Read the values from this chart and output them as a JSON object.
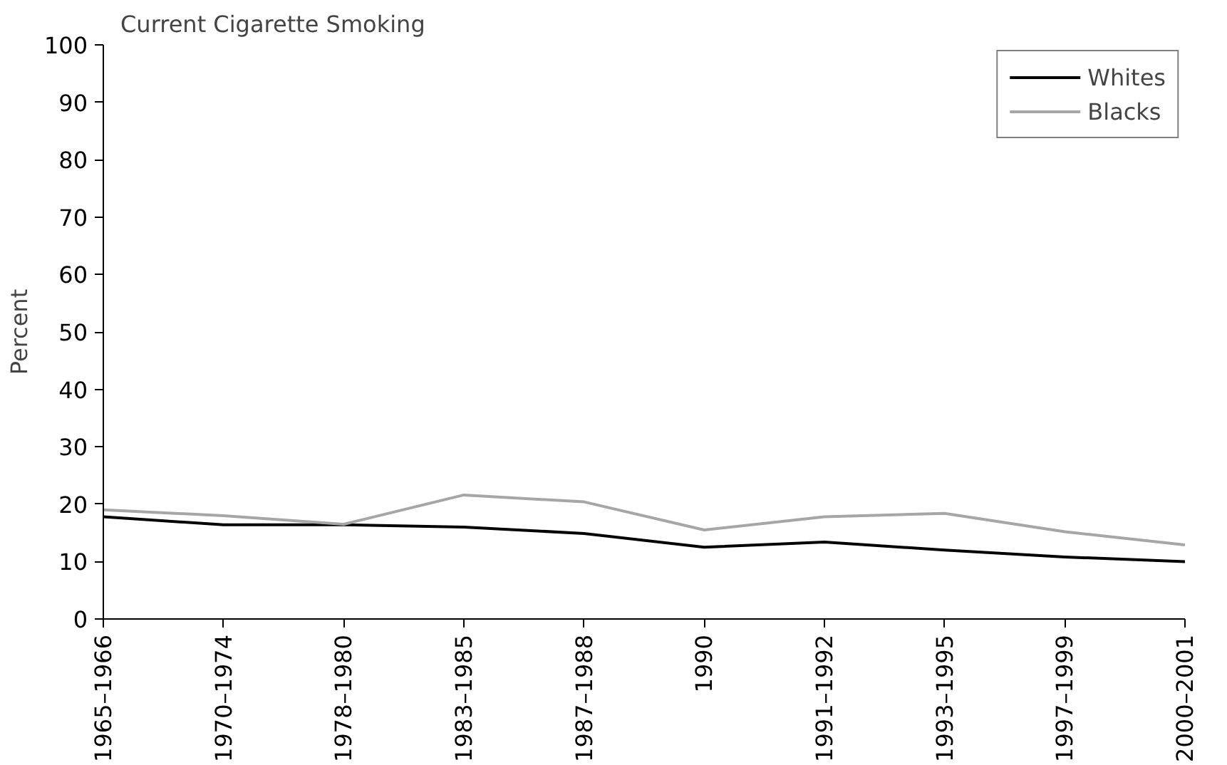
{
  "chart_data": {
    "type": "line",
    "title": "Current Cigarette Smoking",
    "ylabel": "Percent",
    "categories": [
      "1965–1966",
      "1970–1974",
      "1978–1980",
      "1983–1985",
      "1987–1988",
      "1990",
      "1991–1992",
      "1993–1995",
      "1997–1999",
      "2000–2001"
    ],
    "ylim": [
      0,
      100
    ],
    "yticks": [
      0,
      10,
      20,
      30,
      40,
      50,
      60,
      70,
      80,
      90,
      100
    ],
    "series": [
      {
        "name": "Whites",
        "color": "#000000",
        "values": [
          17.8,
          16.4,
          16.4,
          16.0,
          14.9,
          12.5,
          13.4,
          12.0,
          10.8,
          10.0
        ]
      },
      {
        "name": "Blacks",
        "color": "#a6a6a6",
        "values": [
          19.0,
          18.0,
          16.5,
          21.6,
          20.4,
          15.5,
          17.8,
          18.4,
          15.2,
          12.9
        ]
      }
    ],
    "grid": false,
    "legend": "top right",
    "marker": "none",
    "line_style": "solid"
  }
}
